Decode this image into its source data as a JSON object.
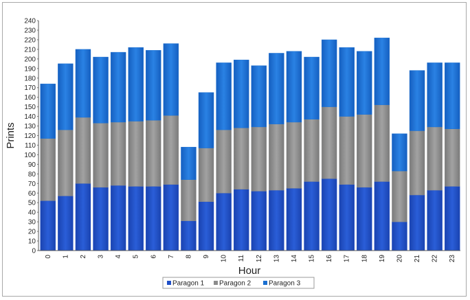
{
  "chart_data": {
    "type": "bar",
    "stacked": true,
    "xlabel": "Hour",
    "ylabel": "Prints",
    "ylim": [
      0,
      240
    ],
    "ytick_step": 10,
    "grid": false,
    "legend_position": "bottom",
    "categories": [
      "0",
      "1",
      "2",
      "3",
      "4",
      "5",
      "6",
      "7",
      "8",
      "9",
      "10",
      "11",
      "12",
      "13",
      "14",
      "15",
      "16",
      "17",
      "18",
      "19",
      "20",
      "21",
      "22",
      "23"
    ],
    "series": [
      {
        "name": "Paragon 1",
        "color": "#1f4fc8",
        "values": [
          52,
          57,
          70,
          66,
          68,
          67,
          67,
          69,
          31,
          51,
          60,
          64,
          62,
          63,
          65,
          72,
          75,
          69,
          66,
          72,
          30,
          58,
          63,
          67
        ]
      },
      {
        "name": "Paragon 2",
        "color": "#8c8c8c",
        "values": [
          65,
          69,
          69,
          67,
          66,
          68,
          69,
          72,
          43,
          56,
          66,
          64,
          67,
          69,
          69,
          65,
          75,
          71,
          76,
          80,
          53,
          67,
          66,
          60
        ]
      },
      {
        "name": "Paragon 3",
        "color": "#1a6fd0",
        "values": [
          57,
          69,
          71,
          69,
          73,
          77,
          73,
          75,
          34,
          58,
          70,
          71,
          64,
          74,
          74,
          65,
          70,
          72,
          66,
          70,
          39,
          63,
          67,
          69
        ]
      }
    ]
  }
}
